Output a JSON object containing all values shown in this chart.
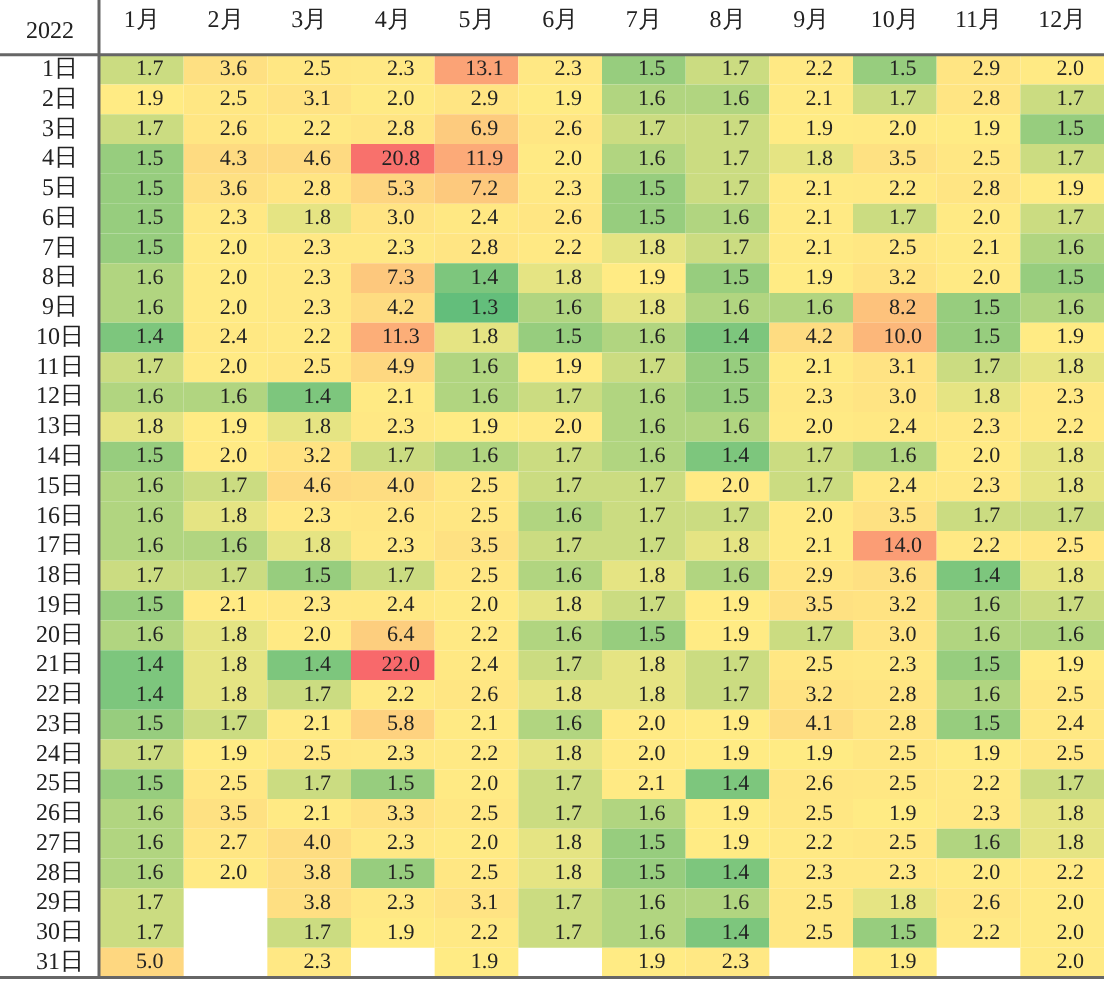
{
  "chart_data": {
    "type": "heatmap",
    "title": "2022",
    "data_labels": true,
    "categories": [
      "1月",
      "2月",
      "3月",
      "4月",
      "5月",
      "6月",
      "7月",
      "8月",
      "9月",
      "10月",
      "11月",
      "12月"
    ],
    "y_categories": [
      "1日",
      "2日",
      "3日",
      "4日",
      "5日",
      "6日",
      "7日",
      "8日",
      "9日",
      "10日",
      "11日",
      "12日",
      "13日",
      "14日",
      "15日",
      "16日",
      "17日",
      "18日",
      "19日",
      "20日",
      "21日",
      "22日",
      "23日",
      "24日",
      "25日",
      "26日",
      "27日",
      "28日",
      "29日",
      "30日",
      "31日"
    ],
    "cells": [
      [
        1.7,
        3.6,
        2.5,
        2.3,
        13.1,
        2.3,
        1.5,
        1.7,
        2.2,
        1.5,
        2.9,
        2.0
      ],
      [
        1.9,
        2.5,
        3.1,
        2.0,
        2.9,
        1.9,
        1.6,
        1.6,
        2.1,
        1.7,
        2.8,
        1.7
      ],
      [
        1.7,
        2.6,
        2.2,
        2.8,
        6.9,
        2.6,
        1.7,
        1.7,
        1.9,
        2.0,
        1.9,
        1.5
      ],
      [
        1.5,
        4.3,
        4.6,
        20.8,
        11.9,
        2.0,
        1.6,
        1.7,
        1.8,
        3.5,
        2.5,
        1.7
      ],
      [
        1.5,
        3.6,
        2.8,
        5.3,
        7.2,
        2.3,
        1.5,
        1.7,
        2.1,
        2.2,
        2.8,
        1.9
      ],
      [
        1.5,
        2.3,
        1.8,
        3.0,
        2.4,
        2.6,
        1.5,
        1.6,
        2.1,
        1.7,
        2.0,
        1.7
      ],
      [
        1.5,
        2.0,
        2.3,
        2.3,
        2.8,
        2.2,
        1.8,
        1.7,
        2.1,
        2.5,
        2.1,
        1.6
      ],
      [
        1.6,
        2.0,
        2.3,
        7.3,
        1.4,
        1.8,
        1.9,
        1.5,
        1.9,
        3.2,
        2.0,
        1.5
      ],
      [
        1.6,
        2.0,
        2.3,
        4.2,
        1.3,
        1.6,
        1.8,
        1.6,
        1.6,
        8.2,
        1.5,
        1.6
      ],
      [
        1.4,
        2.4,
        2.2,
        11.3,
        1.8,
        1.5,
        1.6,
        1.4,
        4.2,
        10.0,
        1.5,
        1.9
      ],
      [
        1.7,
        2.0,
        2.5,
        4.9,
        1.6,
        1.9,
        1.7,
        1.5,
        2.1,
        3.1,
        1.7,
        1.8
      ],
      [
        1.6,
        1.6,
        1.4,
        2.1,
        1.6,
        1.7,
        1.6,
        1.5,
        2.3,
        3.0,
        1.8,
        2.3
      ],
      [
        1.8,
        1.9,
        1.8,
        2.3,
        1.9,
        2.0,
        1.6,
        1.6,
        2.0,
        2.4,
        2.3,
        2.2
      ],
      [
        1.5,
        2.0,
        3.2,
        1.7,
        1.6,
        1.7,
        1.6,
        1.4,
        1.7,
        1.6,
        2.0,
        1.8
      ],
      [
        1.6,
        1.7,
        4.6,
        4.0,
        2.5,
        1.7,
        1.7,
        2.0,
        1.7,
        2.4,
        2.3,
        1.8
      ],
      [
        1.6,
        1.8,
        2.3,
        2.6,
        2.5,
        1.6,
        1.7,
        1.7,
        2.0,
        3.5,
        1.7,
        1.7
      ],
      [
        1.6,
        1.6,
        1.8,
        2.3,
        3.5,
        1.7,
        1.7,
        1.8,
        2.1,
        14.0,
        2.2,
        2.5
      ],
      [
        1.7,
        1.7,
        1.5,
        1.7,
        2.5,
        1.6,
        1.8,
        1.6,
        2.9,
        3.6,
        1.4,
        1.8
      ],
      [
        1.5,
        2.1,
        2.3,
        2.4,
        2.0,
        1.8,
        1.7,
        1.9,
        3.5,
        3.2,
        1.6,
        1.7
      ],
      [
        1.6,
        1.8,
        2.0,
        6.4,
        2.2,
        1.6,
        1.5,
        1.9,
        1.7,
        3.0,
        1.6,
        1.6
      ],
      [
        1.4,
        1.8,
        1.4,
        22.0,
        2.4,
        1.7,
        1.8,
        1.7,
        2.5,
        2.3,
        1.5,
        1.9
      ],
      [
        1.4,
        1.8,
        1.7,
        2.2,
        2.6,
        1.8,
        1.8,
        1.7,
        3.2,
        2.8,
        1.6,
        2.5
      ],
      [
        1.5,
        1.7,
        2.1,
        5.8,
        2.1,
        1.6,
        2.0,
        1.9,
        4.1,
        2.8,
        1.5,
        2.4
      ],
      [
        1.7,
        1.9,
        2.5,
        2.3,
        2.2,
        1.8,
        2.0,
        1.9,
        1.9,
        2.5,
        1.9,
        2.5
      ],
      [
        1.5,
        2.5,
        1.7,
        1.5,
        2.0,
        1.7,
        2.1,
        1.4,
        2.6,
        2.5,
        2.2,
        1.7
      ],
      [
        1.6,
        3.5,
        2.1,
        3.3,
        2.5,
        1.7,
        1.6,
        1.9,
        2.5,
        1.9,
        2.3,
        1.8
      ],
      [
        1.6,
        2.7,
        4.0,
        2.3,
        2.0,
        1.8,
        1.5,
        1.9,
        2.2,
        2.5,
        1.6,
        1.8
      ],
      [
        1.6,
        2.0,
        3.8,
        1.5,
        2.5,
        1.8,
        1.5,
        1.4,
        2.3,
        2.3,
        2.0,
        2.2
      ],
      [
        1.7,
        null,
        3.8,
        2.3,
        3.1,
        1.7,
        1.6,
        1.6,
        2.5,
        1.8,
        2.6,
        2.0
      ],
      [
        1.7,
        null,
        1.7,
        1.9,
        2.2,
        1.7,
        1.6,
        1.4,
        2.5,
        1.5,
        2.2,
        2.0
      ],
      [
        5.0,
        null,
        2.3,
        null,
        1.9,
        null,
        1.9,
        2.3,
        null,
        1.9,
        null,
        2.0
      ]
    ],
    "cell_labels": [
      [
        "1.7",
        "3.6",
        "2.5",
        "2.3",
        "13.1",
        "2.3",
        "1.5",
        "1.7",
        "2.2",
        "1.5",
        "2.9",
        "2.0"
      ],
      [
        "1.9",
        "2.5",
        "3.1",
        "2.0",
        "2.9",
        "1.9",
        "1.6",
        "1.6",
        "2.1",
        "1.7",
        "2.8",
        "1.7"
      ],
      [
        "1.7",
        "2.6",
        "2.2",
        "2.8",
        "6.9",
        "2.6",
        "1.7",
        "1.7",
        "1.9",
        "2.0",
        "1.9",
        "1.5"
      ],
      [
        "1.5",
        "4.3",
        "4.6",
        "20.8",
        "11.9",
        "2.0",
        "1.6",
        "1.7",
        "1.8",
        "3.5",
        "2.5",
        "1.7"
      ],
      [
        "1.5",
        "3.6",
        "2.8",
        "5.3",
        "7.2",
        "2.3",
        "1.5",
        "1.7",
        "2.1",
        "2.2",
        "2.8",
        "1.9"
      ],
      [
        "1.5",
        "2.3",
        "1.8",
        "3.0",
        "2.4",
        "2.6",
        "1.5",
        "1.6",
        "2.1",
        "1.7",
        "2.0",
        "1.7"
      ],
      [
        "1.5",
        "2.0",
        "2.3",
        "2.3",
        "2.8",
        "2.2",
        "1.8",
        "1.7",
        "2.1",
        "2.5",
        "2.1",
        "1.6"
      ],
      [
        "1.6",
        "2.0",
        "2.3",
        "7.3",
        "1.4",
        "1.8",
        "1.9",
        "1.5",
        "1.9",
        "3.2",
        "2.0",
        "1.5"
      ],
      [
        "1.6",
        "2.0",
        "2.3",
        "4.2",
        "1.3",
        "1.6",
        "1.8",
        "1.6",
        "1.6",
        "8.2",
        "1.5",
        "1.6"
      ],
      [
        "1.4",
        "2.4",
        "2.2",
        "11.3",
        "1.8",
        "1.5",
        "1.6",
        "1.4",
        "4.2",
        "10.0",
        "1.5",
        "1.9"
      ],
      [
        "1.7",
        "2.0",
        "2.5",
        "4.9",
        "1.6",
        "1.9",
        "1.7",
        "1.5",
        "2.1",
        "3.1",
        "1.7",
        "1.8"
      ],
      [
        "1.6",
        "1.6",
        "1.4",
        "2.1",
        "1.6",
        "1.7",
        "1.6",
        "1.5",
        "2.3",
        "3.0",
        "1.8",
        "2.3"
      ],
      [
        "1.8",
        "1.9",
        "1.8",
        "2.3",
        "1.9",
        "2.0",
        "1.6",
        "1.6",
        "2.0",
        "2.4",
        "2.3",
        "2.2"
      ],
      [
        "1.5",
        "2.0",
        "3.2",
        "1.7",
        "1.6",
        "1.7",
        "1.6",
        "1.4",
        "1.7",
        "1.6",
        "2.0",
        "1.8"
      ],
      [
        "1.6",
        "1.7",
        "4.6",
        "4.0",
        "2.5",
        "1.7",
        "1.7",
        "2.0",
        "1.7",
        "2.4",
        "2.3",
        "1.8"
      ],
      [
        "1.6",
        "1.8",
        "2.3",
        "2.6",
        "2.5",
        "1.6",
        "1.7",
        "1.7",
        "2.0",
        "3.5",
        "1.7",
        "1.7"
      ],
      [
        "1.6",
        "1.6",
        "1.8",
        "2.3",
        "3.5",
        "1.7",
        "1.7",
        "1.8",
        "2.1",
        "14.0",
        "2.2",
        "2.5"
      ],
      [
        "1.7",
        "1.7",
        "1.5",
        "1.7",
        "2.5",
        "1.6",
        "1.8",
        "1.6",
        "2.9",
        "3.6",
        "1.4",
        "1.8"
      ],
      [
        "1.5",
        "2.1",
        "2.3",
        "2.4",
        "2.0",
        "1.8",
        "1.7",
        "1.9",
        "3.5",
        "3.2",
        "1.6",
        "1.7"
      ],
      [
        "1.6",
        "1.8",
        "2.0",
        "6.4",
        "2.2",
        "1.6",
        "1.5",
        "1.9",
        "1.7",
        "3.0",
        "1.6",
        "1.6"
      ],
      [
        "1.4",
        "1.8",
        "1.4",
        "22.0",
        "2.4",
        "1.7",
        "1.8",
        "1.7",
        "2.5",
        "2.3",
        "1.5",
        "1.9"
      ],
      [
        "1.4",
        "1.8",
        "1.7",
        "2.2",
        "2.6",
        "1.8",
        "1.8",
        "1.7",
        "3.2",
        "2.8",
        "1.6",
        "2.5"
      ],
      [
        "1.5",
        "1.7",
        "2.1",
        "5.8",
        "2.1",
        "1.6",
        "2.0",
        "1.9",
        "4.1",
        "2.8",
        "1.5",
        "2.4"
      ],
      [
        "1.7",
        "1.9",
        "2.5",
        "2.3",
        "2.2",
        "1.8",
        "2.0",
        "1.9",
        "1.9",
        "2.5",
        "1.9",
        "2.5"
      ],
      [
        "1.5",
        "2.5",
        "1.7",
        "1.5",
        "2.0",
        "1.7",
        "2.1",
        "1.4",
        "2.6",
        "2.5",
        "2.2",
        "1.7"
      ],
      [
        "1.6",
        "3.5",
        "2.1",
        "3.3",
        "2.5",
        "1.7",
        "1.6",
        "1.9",
        "2.5",
        "1.9",
        "2.3",
        "1.8"
      ],
      [
        "1.6",
        "2.7",
        "4.0",
        "2.3",
        "2.0",
        "1.8",
        "1.5",
        "1.9",
        "2.2",
        "2.5",
        "1.6",
        "1.8"
      ],
      [
        "1.6",
        "2.0",
        "3.8",
        "1.5",
        "2.5",
        "1.8",
        "1.5",
        "1.4",
        "2.3",
        "2.3",
        "2.0",
        "2.2"
      ],
      [
        "1.7",
        null,
        "3.8",
        "2.3",
        "3.1",
        "1.7",
        "1.6",
        "1.6",
        "2.5",
        "1.8",
        "2.6",
        "2.0"
      ],
      [
        "1.7",
        null,
        "1.7",
        "1.9",
        "2.2",
        "1.7",
        "1.6",
        "1.4",
        "2.5",
        "1.5",
        "2.2",
        "2.0"
      ],
      [
        "5.0",
        null,
        "2.3",
        null,
        "1.9",
        null,
        "1.9",
        "2.3",
        null,
        "1.9",
        null,
        "2.0"
      ]
    ]
  }
}
